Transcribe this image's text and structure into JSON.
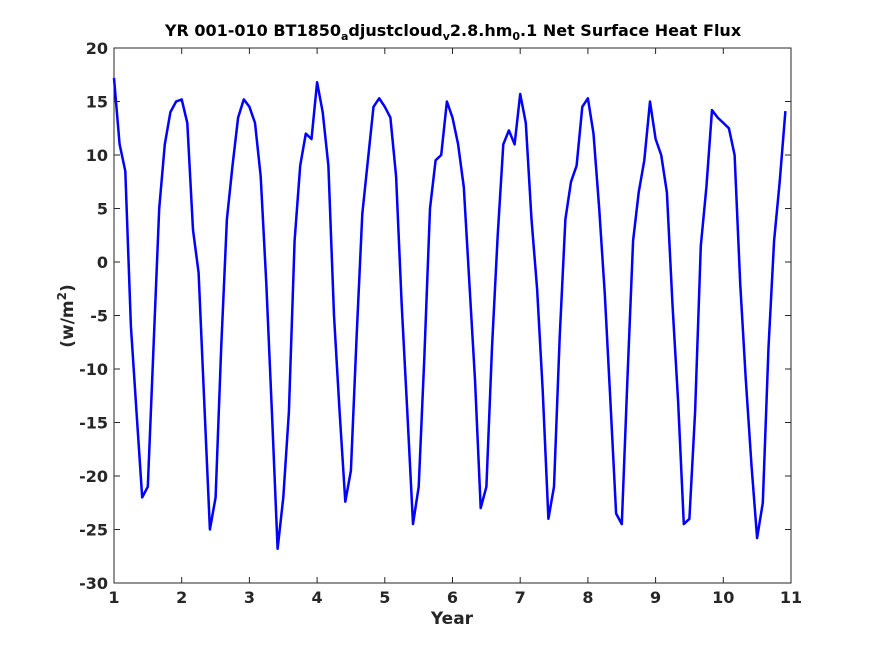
{
  "chart_data": {
    "type": "line",
    "title": {
      "parts": [
        {
          "text": "YR 001-010 BT1850",
          "sub": false
        },
        {
          "text": "a",
          "sub": true
        },
        {
          "text": "djustcloud",
          "sub": false
        },
        {
          "text": "v",
          "sub": true
        },
        {
          "text": "2.8.hm",
          "sub": false
        },
        {
          "text": "0",
          "sub": true
        },
        {
          "text": ".1 Net Surface Heat Flux",
          "sub": false
        }
      ]
    },
    "xlabel": "Year",
    "ylabel": {
      "base": "(w/m",
      "sup": "2",
      "close": ")"
    },
    "xlim": [
      1,
      11
    ],
    "ylim": [
      -30,
      20
    ],
    "xticks": [
      1,
      2,
      3,
      4,
      5,
      6,
      7,
      8,
      9,
      10,
      11
    ],
    "yticks": [
      -30,
      -25,
      -20,
      -15,
      -10,
      -5,
      0,
      5,
      10,
      15,
      20
    ],
    "grid": false,
    "line_color": "#0000ff",
    "series": [
      {
        "x": [
          1.0,
          1.083,
          1.167,
          1.25,
          1.333,
          1.417,
          1.5,
          1.583,
          1.667,
          1.75,
          1.833,
          1.917,
          2.0,
          2.083,
          2.167,
          2.25,
          2.333,
          2.417,
          2.5,
          2.583,
          2.667,
          2.75,
          2.833,
          2.917,
          3.0,
          3.083,
          3.167,
          3.25,
          3.333,
          3.417,
          3.5,
          3.583,
          3.667,
          3.75,
          3.833,
          3.917,
          4.0,
          4.083,
          4.167,
          4.25,
          4.333,
          4.417,
          4.5,
          4.583,
          4.667,
          4.75,
          4.833,
          4.917,
          5.0,
          5.083,
          5.167,
          5.25,
          5.333,
          5.417,
          5.5,
          5.583,
          5.667,
          5.75,
          5.833,
          5.917,
          6.0,
          6.083,
          6.167,
          6.25,
          6.333,
          6.417,
          6.5,
          6.583,
          6.667,
          6.75,
          6.833,
          6.917,
          7.0,
          7.083,
          7.167,
          7.25,
          7.333,
          7.417,
          7.5,
          7.583,
          7.667,
          7.75,
          7.833,
          7.917,
          8.0,
          8.083,
          8.167,
          8.25,
          8.333,
          8.417,
          8.5,
          8.583,
          8.667,
          8.75,
          8.833,
          8.917,
          9.0,
          9.083,
          9.167,
          9.25,
          9.333,
          9.417,
          9.5,
          9.583,
          9.667,
          9.75,
          9.833,
          9.917,
          10.0,
          10.083,
          10.167,
          10.25,
          10.333,
          10.417,
          10.5,
          10.583,
          10.667,
          10.75,
          10.833,
          10.917
        ],
        "y": [
          17.2,
          11.0,
          8.5,
          -6.0,
          -14.0,
          -22.0,
          -21.0,
          -8.0,
          5.0,
          11.0,
          14.0,
          15.0,
          15.2,
          13.0,
          3.0,
          -1.0,
          -13.0,
          -25.0,
          -22.0,
          -8.0,
          4.0,
          9.0,
          13.5,
          15.2,
          14.5,
          13.0,
          8.0,
          -2.0,
          -14.0,
          -26.8,
          -22.0,
          -14.0,
          2.0,
          9.0,
          12.0,
          11.5,
          16.8,
          14.0,
          9.0,
          -5.0,
          -14.0,
          -22.4,
          -19.5,
          -7.0,
          4.5,
          9.5,
          14.5,
          15.3,
          14.5,
          13.5,
          8.0,
          -4.0,
          -14.0,
          -24.5,
          -21.0,
          -9.0,
          5.0,
          9.5,
          10.0,
          15.0,
          13.5,
          11.0,
          7.0,
          -2.0,
          -11.0,
          -23.0,
          -21.0,
          -8.0,
          2.5,
          11.0,
          12.3,
          11.0,
          15.7,
          13.0,
          4.0,
          -2.5,
          -12.0,
          -24.0,
          -21.0,
          -7.0,
          4.0,
          7.5,
          9.0,
          14.5,
          15.3,
          12.0,
          5.0,
          -3.0,
          -13.0,
          -23.5,
          -24.5,
          -11.0,
          2.0,
          6.5,
          9.5,
          15.0,
          11.5,
          10.0,
          6.5,
          -4.0,
          -13.0,
          -24.5,
          -24.0,
          -14.0,
          1.5,
          7.0,
          14.2,
          13.5,
          13.0,
          12.5,
          10.0,
          -2.0,
          -11.0,
          -19.0,
          -25.8,
          -22.5,
          -8.0,
          2.0,
          7.5,
          14.1
        ]
      }
    ]
  }
}
